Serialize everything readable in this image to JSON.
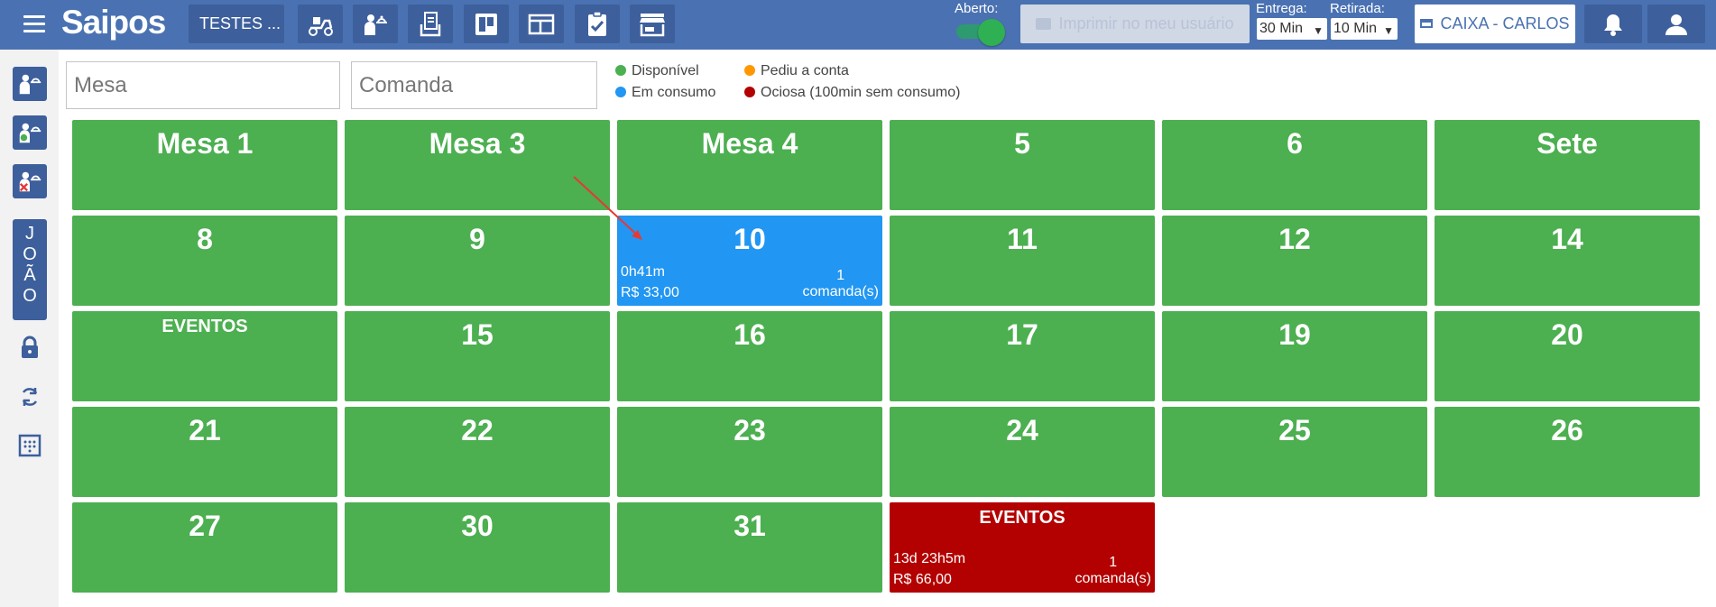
{
  "header": {
    "logo": "Saipos",
    "store_name": "TESTES ...",
    "aberto_label": "Aberto:",
    "print_label": "Imprimir no meu usuário",
    "entrega_label": "Entrega:",
    "entrega_value": "30 Min",
    "retirada_label": "Retirada:",
    "retirada_value": "10 Min",
    "caixa_label": "CAIXA - CARLOS"
  },
  "sidebar": {
    "joao_letters": [
      "J",
      "O",
      "Ã",
      "O"
    ]
  },
  "search": {
    "mesa_placeholder": "Mesa",
    "comanda_placeholder": "Comanda"
  },
  "legend": [
    {
      "label": "Disponível",
      "color": "#4caf50"
    },
    {
      "label": "Pediu a conta",
      "color": "#ff9800"
    },
    {
      "label": "Em consumo",
      "color": "#2196f3"
    },
    {
      "label": "Ociosa (100min sem consumo)",
      "color": "#b30000"
    }
  ],
  "tables": [
    {
      "name": "Mesa 1",
      "status": "disponivel"
    },
    {
      "name": "Mesa 3",
      "status": "disponivel"
    },
    {
      "name": "Mesa 4",
      "status": "disponivel"
    },
    {
      "name": "5",
      "status": "disponivel"
    },
    {
      "name": "6",
      "status": "disponivel"
    },
    {
      "name": "Sete",
      "status": "disponivel"
    },
    {
      "name": "8",
      "status": "disponivel"
    },
    {
      "name": "9",
      "status": "disponivel"
    },
    {
      "name": "10",
      "status": "em-consumo",
      "time": "0h41m",
      "price": "R$ 33,00",
      "count": "1",
      "count_label": "comanda(s)"
    },
    {
      "name": "11",
      "status": "disponivel"
    },
    {
      "name": "12",
      "status": "disponivel"
    },
    {
      "name": "14",
      "status": "disponivel"
    },
    {
      "name": "EVENTOS",
      "status": "disponivel",
      "small": true
    },
    {
      "name": "15",
      "status": "disponivel"
    },
    {
      "name": "16",
      "status": "disponivel"
    },
    {
      "name": "17",
      "status": "disponivel"
    },
    {
      "name": "19",
      "status": "disponivel"
    },
    {
      "name": "20",
      "status": "disponivel"
    },
    {
      "name": "21",
      "status": "disponivel"
    },
    {
      "name": "22",
      "status": "disponivel"
    },
    {
      "name": "23",
      "status": "disponivel"
    },
    {
      "name": "24",
      "status": "disponivel"
    },
    {
      "name": "25",
      "status": "disponivel"
    },
    {
      "name": "26",
      "status": "disponivel"
    },
    {
      "name": "27",
      "status": "disponivel"
    },
    {
      "name": "30",
      "status": "disponivel"
    },
    {
      "name": "31",
      "status": "disponivel"
    },
    {
      "name": "EVENTOS",
      "status": "ociosa",
      "small": true,
      "time": "13d 23h5m",
      "price": "R$ 66,00",
      "count": "1",
      "count_label": "comanda(s)"
    }
  ]
}
